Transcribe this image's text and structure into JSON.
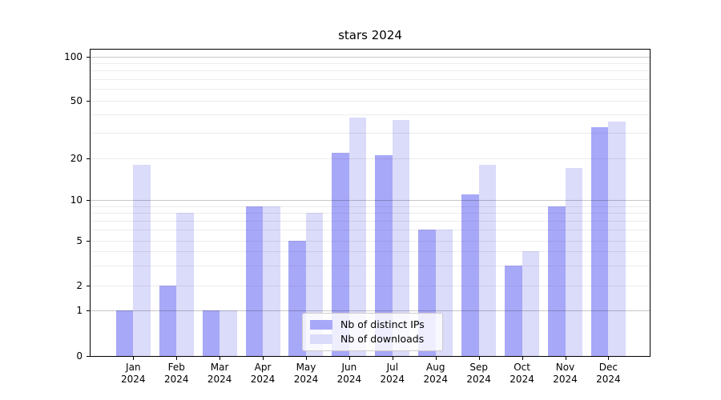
{
  "figure": {
    "background": "#ffffff",
    "text_color": "#000000"
  },
  "chart_data": {
    "type": "bar",
    "title": "stars 2024",
    "categories": [
      "Jan",
      "Feb",
      "Mar",
      "Apr",
      "May",
      "Jun",
      "Jul",
      "Aug",
      "Sep",
      "Oct",
      "Nov",
      "Dec"
    ],
    "year_label": "2024",
    "series": [
      {
        "name": "Nb of distinct IPs",
        "color": "#a8a8f8",
        "values": [
          1,
          2,
          1,
          9,
          5,
          22,
          21,
          6,
          11,
          3,
          9,
          33
        ]
      },
      {
        "name": "Nb of downloads",
        "color": "#dbdbfa",
        "values": [
          18,
          8,
          1,
          9,
          8,
          38,
          37,
          6,
          18,
          4,
          17,
          36
        ]
      }
    ],
    "xlabel": "",
    "ylabel": "",
    "yticks": [
      100,
      50,
      20,
      10,
      5,
      2,
      1,
      0
    ],
    "ylim": [
      0,
      112
    ],
    "yscale": "log-like (custom tick spacing, linear 0-1)",
    "major_gridlines": [
      1,
      10,
      100
    ],
    "minor_gridlines": [
      2,
      3,
      4,
      5,
      6,
      7,
      8,
      9,
      20,
      30,
      40,
      50,
      60,
      70,
      80,
      90
    ],
    "grid_over_bars": true,
    "legend": {
      "position": "lower center",
      "entries": [
        "Nb of distinct IPs",
        "Nb of downloads"
      ]
    },
    "y_scale_anchors": [
      [
        0,
        0
      ],
      [
        1,
        0.1496
      ],
      [
        2,
        0.2305
      ],
      [
        5,
        0.3768
      ],
      [
        10,
        0.5091
      ],
      [
        20,
        0.6441
      ],
      [
        50,
        0.8337
      ],
      [
        100,
        0.9773
      ]
    ]
  }
}
